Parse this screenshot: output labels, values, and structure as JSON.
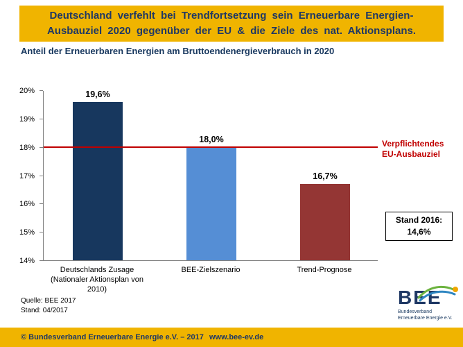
{
  "banner": {
    "line1": "Deutschland verfehlt bei Trendfortsetzung sein Erneuerbare Energien-",
    "line2": "Ausbauziel 2020 gegenüber der EU & die Ziele des nat. Aktionsplans."
  },
  "chart_data": {
    "type": "bar",
    "title": "Anteil der Erneuerbaren Energien am Bruttoendenergieverbrauch in 2020",
    "xlabel": "",
    "ylabel": "",
    "categories": [
      "Deutschlands Zusage (Nationaler Aktionsplan von 2010)",
      "BEE-Zielszenario",
      "Trend-Prognose"
    ],
    "values": [
      19.6,
      18.0,
      16.7
    ],
    "value_labels": [
      "19,6%",
      "18,0%",
      "16,7%"
    ],
    "bar_colors": [
      "#17375E",
      "#558ED5",
      "#943634"
    ],
    "ylim": [
      14,
      20
    ],
    "ytick_values": [
      14,
      15,
      16,
      17,
      18,
      19,
      20
    ],
    "ytick_labels": [
      "14%",
      "15%",
      "16%",
      "17%",
      "18%",
      "19%",
      "20%"
    ],
    "grid": false,
    "legend": false,
    "reference_line": {
      "value": 18,
      "color": "#C00000",
      "label_line1": "Verpflichtendes",
      "label_line2": "EU-Ausbauziel"
    },
    "annotation_box": {
      "line1": "Stand 2016:",
      "line2": "14,6%"
    }
  },
  "source": {
    "line1": "Quelle:  BEE 2017",
    "line2": "Stand:  04/2017"
  },
  "logo": {
    "text": "BEE",
    "subline1": "Bundesverband",
    "subline2": "Erneuerbare Energie e.V."
  },
  "footer": {
    "copyright": "© Bundesverband Erneuerbare Energie e.V. – 2017",
    "website": "www.bee-ev.de"
  },
  "colors": {
    "banner_bg": "#F0B400",
    "banner_text": "#1F3864",
    "footer_bg": "#F0B400"
  }
}
